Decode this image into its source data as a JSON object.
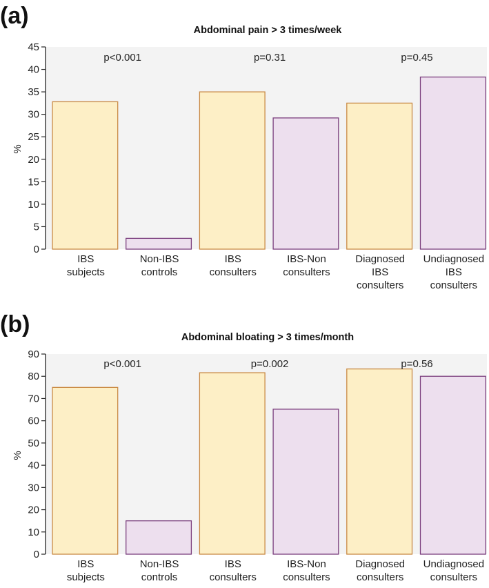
{
  "chart_data": [
    {
      "type": "bar",
      "panel": "(a)",
      "title": "Abdominal pain > 3 times/week",
      "ylabel": "%",
      "xlabel": "",
      "ylim": [
        0,
        45
      ],
      "yticks": [
        0,
        5,
        10,
        15,
        20,
        25,
        30,
        35,
        40,
        45
      ],
      "categories": [
        [
          "IBS",
          "subjects"
        ],
        [
          "Non-IBS",
          "controls"
        ],
        [
          "IBS",
          "consulters"
        ],
        [
          "IBS-Non",
          "consulters"
        ],
        [
          "Diagnosed",
          "IBS",
          "consulters"
        ],
        [
          "Undiagnosed",
          "IBS",
          "consulters"
        ]
      ],
      "values": [
        32.8,
        2.4,
        35.0,
        29.2,
        32.5,
        38.3
      ],
      "groups": [
        "yellow",
        "purple",
        "yellow",
        "purple",
        "yellow",
        "purple"
      ],
      "p_values": [
        "p<0.001",
        "p=0.31",
        "p=0.45"
      ]
    },
    {
      "type": "bar",
      "panel": "(b)",
      "title": "Abdominal bloating > 3 times/month",
      "ylabel": "%",
      "xlabel": "",
      "ylim": [
        0,
        90
      ],
      "yticks": [
        0,
        10,
        20,
        30,
        40,
        50,
        60,
        70,
        80,
        90
      ],
      "categories": [
        [
          "IBS",
          "subjects"
        ],
        [
          "Non-IBS",
          "controls"
        ],
        [
          "IBS",
          "consulters"
        ],
        [
          "IBS-Non",
          "consulters"
        ],
        [
          "Diagnosed",
          "consulters"
        ],
        [
          "Undiagnosed",
          "consulters"
        ]
      ],
      "values": [
        75.0,
        15.0,
        81.6,
        65.2,
        83.3,
        80.0
      ],
      "groups": [
        "yellow",
        "purple",
        "yellow",
        "purple",
        "yellow",
        "purple"
      ],
      "p_values": [
        "p<0.001",
        "p=0.002",
        "p=0.56"
      ]
    }
  ],
  "colors": {
    "yellow_fill": "#FDEFC6",
    "yellow_stroke": "#C98A45",
    "purple_fill": "#EDDFEE",
    "purple_stroke": "#7B3F7E",
    "plot_bg": "#F3F3F3",
    "axis": "#222222"
  }
}
